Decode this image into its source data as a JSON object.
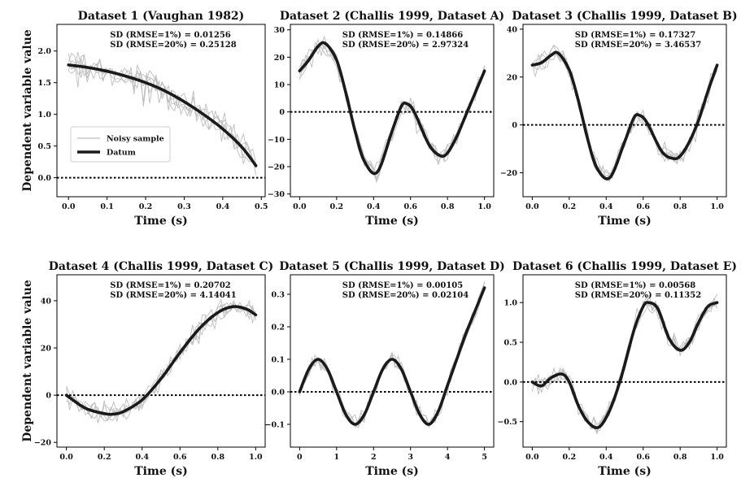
{
  "figure": {
    "ylabel_left": "Dependent variable value",
    "legend": {
      "noisy_label": "Noisy sample",
      "datum_label": "Datum",
      "noisy_color": "#bdbdbd",
      "datum_color": "#1a1a1a"
    }
  },
  "chart_data": [
    {
      "type": "line",
      "title": "Dataset 1 (Vaughan 1982)",
      "xlabel": "Time (s)",
      "ylabel": "Dependent variable value",
      "xlim": [
        -0.03,
        0.51
      ],
      "ylim": [
        -0.3,
        2.42
      ],
      "xticks": [
        0.0,
        0.1,
        0.2,
        0.3,
        0.4,
        0.5
      ],
      "xtick_labels": [
        "0.0",
        "0.1",
        "0.2",
        "0.3",
        "0.4",
        "0.5"
      ],
      "yticks": [
        0.0,
        0.5,
        1.0,
        1.5,
        2.0
      ],
      "ytick_labels": [
        "0.0",
        "0.5",
        "1.0",
        "1.5",
        "2.0"
      ],
      "stats": [
        "SD (RMSE=1%)   = 0.01256",
        "SD (RMSE=20%) = 0.25128"
      ],
      "legend": true,
      "grid": false,
      "noise_sd": 0.2,
      "series": [
        {
          "name": "Datum",
          "x": [
            0.0,
            0.05,
            0.1,
            0.15,
            0.2,
            0.25,
            0.3,
            0.35,
            0.4,
            0.45,
            0.486
          ],
          "values": [
            1.78,
            1.74,
            1.68,
            1.6,
            1.5,
            1.37,
            1.2,
            1.0,
            0.77,
            0.48,
            0.19
          ]
        }
      ]
    },
    {
      "type": "line",
      "title": "Dataset 2 (Challis 1999, Dataset A)",
      "xlabel": "Time (s)",
      "ylabel": "",
      "xlim": [
        -0.05,
        1.05
      ],
      "ylim": [
        -31,
        32
      ],
      "xticks": [
        0.0,
        0.2,
        0.4,
        0.6,
        0.8,
        1.0
      ],
      "xtick_labels": [
        "0.0",
        "0.2",
        "0.4",
        "0.6",
        "0.8",
        "1.0"
      ],
      "yticks": [
        -30,
        -20,
        -10,
        0,
        10,
        20,
        30
      ],
      "ytick_labels": [
        "−30",
        "−20",
        "−10",
        "0",
        "10",
        "20",
        "30"
      ],
      "stats": [
        "SD (RMSE=1%)   = 0.14866",
        "SD (RMSE=20%) = 2.97324"
      ],
      "legend": false,
      "grid": false,
      "noise_sd": 3.0,
      "series": [
        {
          "name": "Datum",
          "x": [
            0.0,
            0.05,
            0.1,
            0.14,
            0.2,
            0.25,
            0.3,
            0.35,
            0.42,
            0.5,
            0.55,
            0.58,
            0.62,
            0.7,
            0.76,
            0.8,
            0.85,
            0.9,
            0.95,
            1.0
          ],
          "values": [
            15,
            19,
            24,
            25,
            19,
            7,
            -7,
            -18,
            -22,
            -7,
            2,
            3,
            0,
            -12,
            -16,
            -15,
            -9,
            -1,
            7,
            15
          ]
        }
      ]
    },
    {
      "type": "line",
      "title": "Dataset 3 (Challis 1999, Dataset B)",
      "xlabel": "Time (s)",
      "ylabel": "",
      "xlim": [
        -0.05,
        1.05
      ],
      "ylim": [
        -30,
        42
      ],
      "xticks": [
        0.0,
        0.2,
        0.4,
        0.6,
        0.8,
        1.0
      ],
      "xtick_labels": [
        "0.0",
        "0.2",
        "0.4",
        "0.6",
        "0.8",
        "1.0"
      ],
      "yticks": [
        -20,
        0,
        20,
        40
      ],
      "ytick_labels": [
        "−20",
        "0",
        "20",
        "40"
      ],
      "stats": [
        "SD (RMSE=1%)   = 0.17327",
        "SD (RMSE=20%) = 3.46537"
      ],
      "legend": false,
      "grid": false,
      "noise_sd": 3.5,
      "series": [
        {
          "name": "Datum",
          "x": [
            0.0,
            0.05,
            0.1,
            0.14,
            0.2,
            0.25,
            0.3,
            0.35,
            0.42,
            0.5,
            0.55,
            0.58,
            0.62,
            0.7,
            0.76,
            0.8,
            0.85,
            0.9,
            0.95,
            1.0
          ],
          "values": [
            25,
            26,
            29,
            30,
            23,
            10,
            -6,
            -18,
            -22,
            -7,
            3,
            4,
            1,
            -11,
            -14,
            -13,
            -7,
            2,
            14,
            25
          ]
        }
      ]
    },
    {
      "type": "line",
      "title": "Dataset 4 (Challis 1999, Dataset C)",
      "xlabel": "Time (s)",
      "ylabel": "Dependent variable value",
      "xlim": [
        -0.05,
        1.05
      ],
      "ylim": [
        -22,
        51
      ],
      "xticks": [
        0.0,
        0.2,
        0.4,
        0.6,
        0.8,
        1.0
      ],
      "xtick_labels": [
        "0.0",
        "0.2",
        "0.4",
        "0.6",
        "0.8",
        "1.0"
      ],
      "yticks": [
        -20,
        0,
        20,
        40
      ],
      "ytick_labels": [
        "−20",
        "0",
        "20",
        "40"
      ],
      "stats": [
        "SD (RMSE=1%)   = 0.20702",
        "SD (RMSE=20%) = 4.14041"
      ],
      "legend": false,
      "grid": false,
      "noise_sd": 4.0,
      "series": [
        {
          "name": "Datum",
          "x": [
            0.0,
            0.1,
            0.2,
            0.25,
            0.3,
            0.4,
            0.5,
            0.6,
            0.7,
            0.8,
            0.88,
            0.95,
            1.0
          ],
          "values": [
            0,
            -5.5,
            -7.8,
            -8,
            -7,
            -2,
            7,
            18,
            28,
            35,
            37.5,
            36.5,
            34
          ]
        }
      ]
    },
    {
      "type": "line",
      "title": "Dataset 5 (Challis 1999, Dataset D)",
      "xlabel": "Time (s)",
      "ylabel": "",
      "xlim": [
        -0.25,
        5.25
      ],
      "ylim": [
        -0.17,
        0.36
      ],
      "xticks": [
        0,
        1,
        2,
        3,
        4,
        5
      ],
      "xtick_labels": [
        "0",
        "1",
        "2",
        "3",
        "4",
        "5"
      ],
      "yticks": [
        -0.1,
        0.0,
        0.1,
        0.2,
        0.3
      ],
      "ytick_labels": [
        "−0.1",
        "0.0",
        "0.1",
        "0.2",
        "0.3"
      ],
      "stats": [
        "SD (RMSE=1%)   = 0.00105",
        "SD (RMSE=20%) = 0.02104"
      ],
      "legend": false,
      "grid": false,
      "noise_sd": 0.02,
      "series": [
        {
          "name": "Datum",
          "x": [
            0.0,
            0.25,
            0.5,
            0.75,
            1.0,
            1.25,
            1.5,
            1.75,
            2.0,
            2.25,
            2.5,
            2.75,
            3.0,
            3.25,
            3.5,
            3.75,
            4.0,
            4.25,
            4.5,
            4.75,
            5.0
          ],
          "values": [
            0.0,
            0.07,
            0.1,
            0.07,
            0.0,
            -0.07,
            -0.1,
            -0.07,
            0.0,
            0.07,
            0.1,
            0.07,
            0.0,
            -0.07,
            -0.1,
            -0.06,
            0.02,
            0.1,
            0.18,
            0.25,
            0.32
          ]
        }
      ]
    },
    {
      "type": "line",
      "title": "Dataset 6 (Challis 1999, Dataset E)",
      "xlabel": "Time (s)",
      "ylabel": "",
      "xlim": [
        -0.05,
        1.05
      ],
      "ylim": [
        -0.82,
        1.35
      ],
      "xticks": [
        0.0,
        0.2,
        0.4,
        0.6,
        0.8,
        1.0
      ],
      "xtick_labels": [
        "0.0",
        "0.2",
        "0.4",
        "0.6",
        "0.8",
        "1.0"
      ],
      "yticks": [
        -0.5,
        0.0,
        0.5,
        1.0
      ],
      "ytick_labels": [
        "−0.5",
        "0.0",
        "0.5",
        "1.0"
      ],
      "stats": [
        "SD (RMSE=1%)   = 0.00568",
        "SD (RMSE=20%) = 0.11352"
      ],
      "legend": false,
      "grid": false,
      "noise_sd": 0.1,
      "series": [
        {
          "name": "Datum",
          "x": [
            0.0,
            0.05,
            0.1,
            0.16,
            0.2,
            0.25,
            0.3,
            0.36,
            0.42,
            0.48,
            0.55,
            0.6,
            0.63,
            0.68,
            0.74,
            0.8,
            0.85,
            0.9,
            0.95,
            1.0
          ],
          "values": [
            0.0,
            -0.05,
            0.05,
            0.1,
            0.0,
            -0.3,
            -0.5,
            -0.57,
            -0.35,
            0.05,
            0.65,
            0.95,
            1.0,
            0.92,
            0.55,
            0.4,
            0.5,
            0.75,
            0.95,
            1.0
          ]
        }
      ]
    }
  ]
}
